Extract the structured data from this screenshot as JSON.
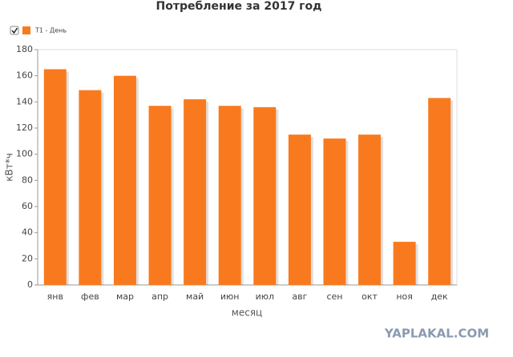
{
  "chart_data": {
    "type": "bar",
    "title": "Потребление за 2017 год",
    "x_label": "месяц",
    "y_label": "кВт*ч",
    "categories": [
      "янв",
      "фев",
      "мар",
      "апр",
      "май",
      "июн",
      "июл",
      "авг",
      "сен",
      "окт",
      "ноя",
      "дек"
    ],
    "series": [
      {
        "name": "T1 - День",
        "color": "#f97a1e",
        "values": [
          165,
          149,
          160,
          137,
          142,
          137,
          136,
          115,
          112,
          115,
          33,
          143
        ]
      }
    ],
    "ylim": [
      0,
      180
    ],
    "yticks": [
      0,
      20,
      40,
      60,
      80,
      100,
      120,
      140,
      160,
      180
    ],
    "grid": false,
    "legend": "top-left"
  },
  "watermark": "YAPLAKAL.COM"
}
